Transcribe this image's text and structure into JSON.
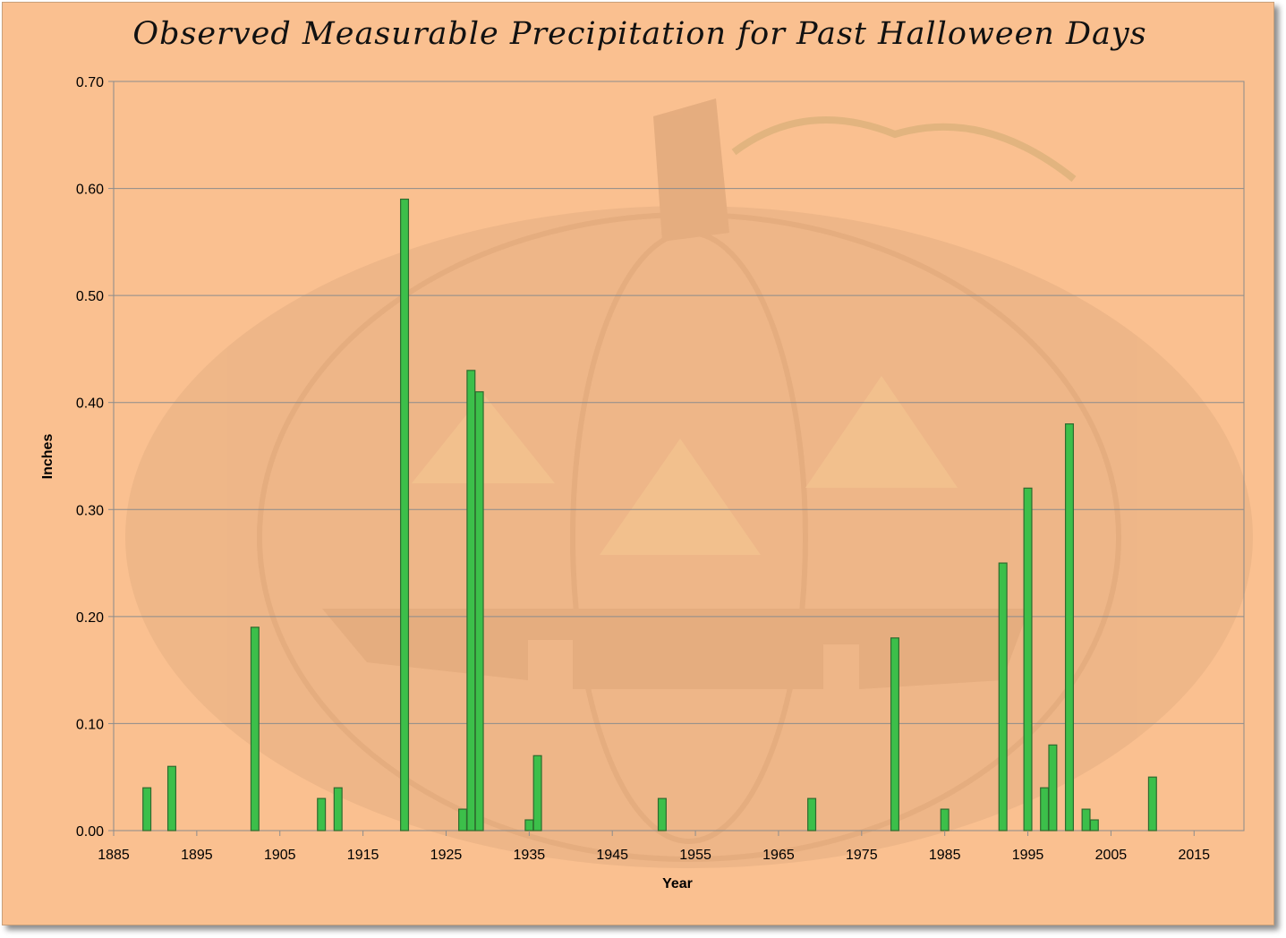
{
  "chart_data": {
    "type": "bar",
    "title": "Observed Measurable Precipitation for Past Halloween Days",
    "xlabel": "Year",
    "ylabel": "Inches",
    "xlim": [
      1885,
      2021
    ],
    "ylim": [
      0,
      0.7
    ],
    "x_ticks": [
      "1885",
      "1895",
      "1905",
      "1915",
      "1925",
      "1935",
      "1945",
      "1955",
      "1965",
      "1975",
      "1985",
      "1995",
      "2005",
      "2015"
    ],
    "y_ticks": [
      "0.00",
      "0.10",
      "0.20",
      "0.30",
      "0.40",
      "0.50",
      "0.60",
      "0.70"
    ],
    "grid": true,
    "legend": "none",
    "bar_color": "#3cbf4a",
    "bar_edge_color": "#2e6b2e",
    "background_color": "#fac090",
    "series": [
      {
        "x": [
          1889,
          1892,
          1902,
          1910,
          1912,
          1920,
          1927,
          1928,
          1929,
          1935,
          1936,
          1951,
          1969,
          1979,
          1985,
          1992,
          1995,
          1997,
          1998,
          2000,
          2002,
          2003,
          2010
        ],
        "values": [
          0.04,
          0.06,
          0.19,
          0.03,
          0.04,
          0.59,
          0.02,
          0.43,
          0.41,
          0.01,
          0.07,
          0.03,
          0.03,
          0.18,
          0.02,
          0.25,
          0.32,
          0.04,
          0.08,
          0.38,
          0.02,
          0.01,
          0.05
        ]
      }
    ]
  }
}
